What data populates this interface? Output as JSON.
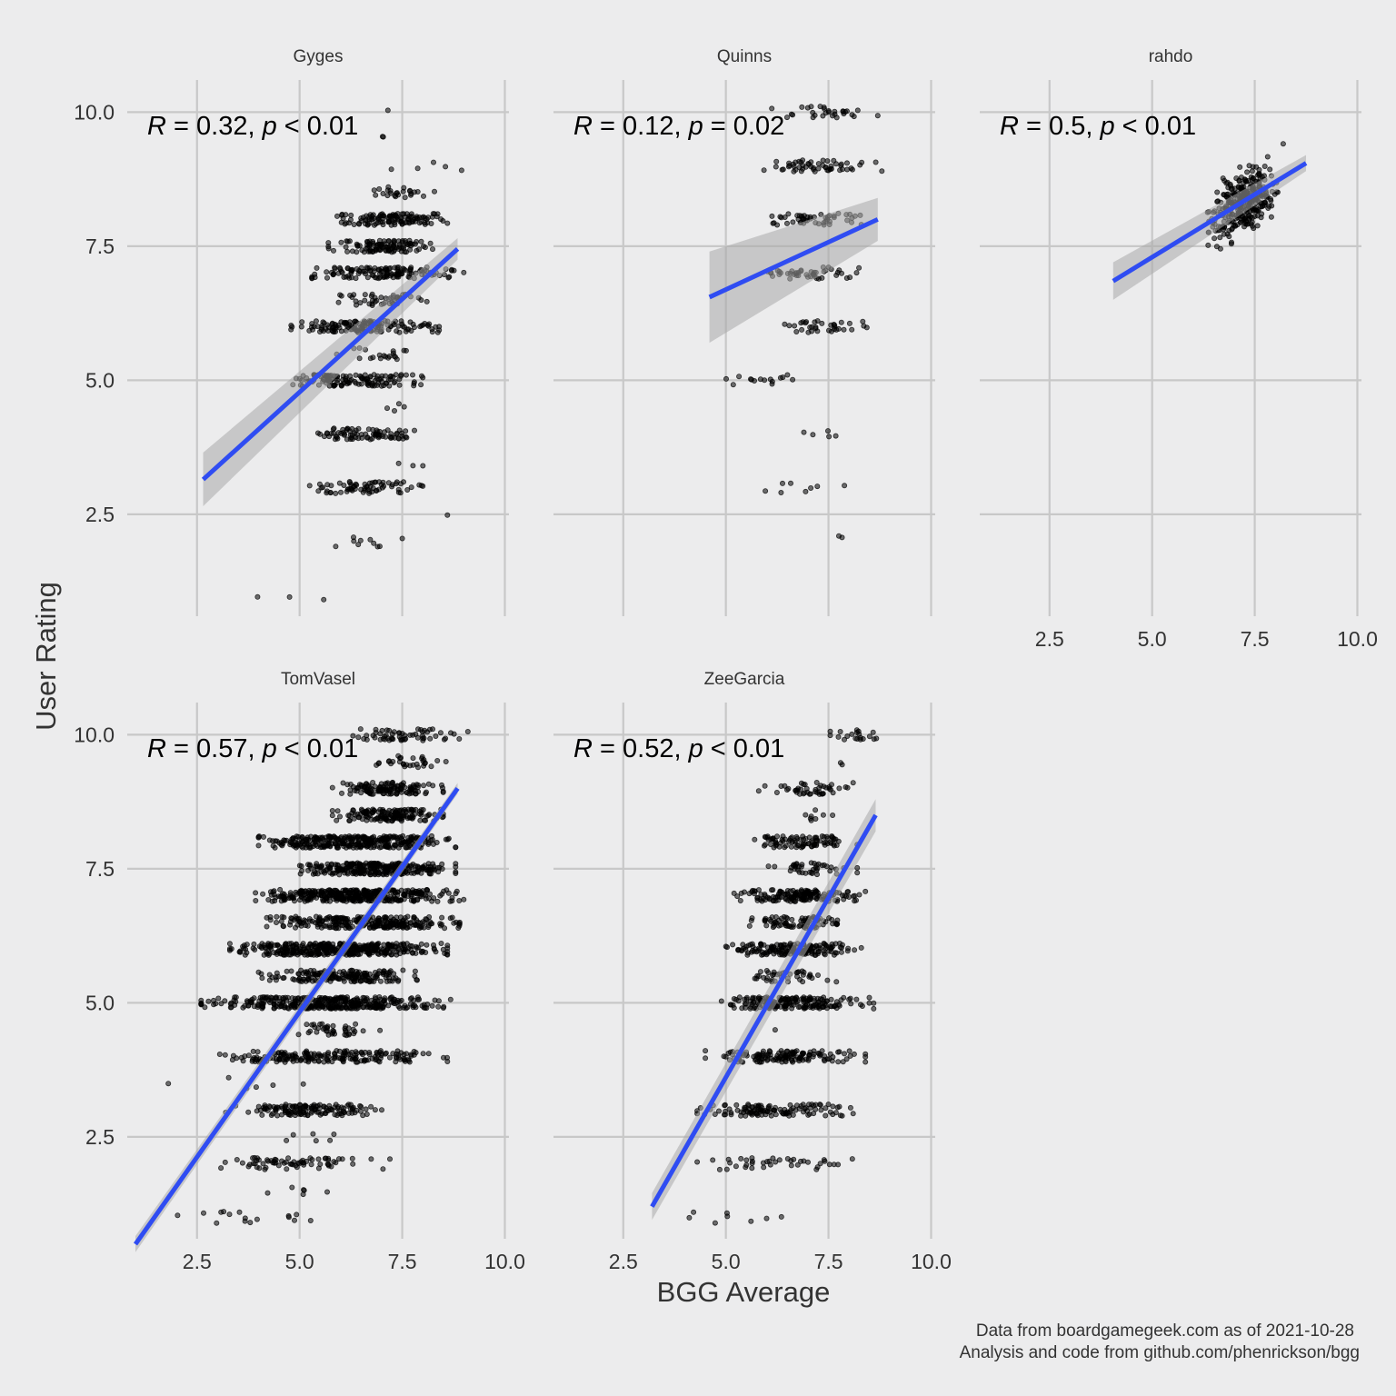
{
  "chart_data": {
    "type": "scatter",
    "xlabel": "BGG Average",
    "ylabel": "User Rating",
    "xlim": [
      0.8,
      10.1
    ],
    "ylim": [
      0.6,
      10.6
    ],
    "x_ticks": [
      "2.5",
      "5.0",
      "7.5",
      "10.0"
    ],
    "y_ticks": [
      "2.5",
      "5.0",
      "7.5",
      "10.0"
    ],
    "grid": true,
    "caption": [
      "Data from boardgamegeek.com as of 2021-10-28",
      "Analysis and code from github.com/phenrickson/bgg"
    ],
    "colors": {
      "background": "#ececed",
      "grid": "#c8c8c8",
      "points": "#000000",
      "fit_line": "#2f4cf2",
      "ribbon": "#a9a9a9"
    },
    "panels": [
      {
        "name": "Gyges",
        "annotation": {
          "R": "0.32",
          "p": "< 0.01"
        },
        "fit": {
          "x": [
            2.65,
            8.85
          ],
          "y": [
            3.15,
            7.45
          ]
        },
        "ci_halfwidth": [
          0.5,
          0.2
        ],
        "levels": [
          {
            "y": 10,
            "xmin": 7.0,
            "xmax": 7.3,
            "n": 1
          },
          {
            "y": 9.5,
            "xmin": 6.9,
            "xmax": 7.1,
            "n": 2
          },
          {
            "y": 9,
            "xmin": 6.5,
            "xmax": 9.1,
            "n": 5
          },
          {
            "y": 8.5,
            "xmin": 6.5,
            "xmax": 8.3,
            "n": 25
          },
          {
            "y": 8,
            "xmin": 5.9,
            "xmax": 8.6,
            "n": 120
          },
          {
            "y": 7.5,
            "xmin": 5.7,
            "xmax": 8.4,
            "n": 110
          },
          {
            "y": 7,
            "xmin": 5.3,
            "xmax": 9.0,
            "n": 130
          },
          {
            "y": 6.5,
            "xmin": 5.9,
            "xmax": 8.1,
            "n": 45
          },
          {
            "y": 6,
            "xmin": 4.7,
            "xmax": 8.4,
            "n": 140
          },
          {
            "y": 5.5,
            "xmin": 5.7,
            "xmax": 7.9,
            "n": 20
          },
          {
            "y": 5,
            "xmin": 4.3,
            "xmax": 8.0,
            "n": 130
          },
          {
            "y": 4.5,
            "xmin": 6.9,
            "xmax": 7.7,
            "n": 4
          },
          {
            "y": 4,
            "xmin": 5.2,
            "xmax": 8.0,
            "n": 80
          },
          {
            "y": 3.5,
            "xmin": 6.5,
            "xmax": 8.5,
            "n": 3
          },
          {
            "y": 3,
            "xmin": 5.1,
            "xmax": 8.0,
            "n": 70
          },
          {
            "y": 2.5,
            "xmin": 8.5,
            "xmax": 8.7,
            "n": 1
          },
          {
            "y": 2,
            "xmin": 5.5,
            "xmax": 7.5,
            "n": 10
          },
          {
            "y": 1,
            "xmin": 2.9,
            "xmax": 6.6,
            "n": 3
          }
        ]
      },
      {
        "name": "Quinns",
        "annotation": {
          "R": "0.12",
          "p": "= 0.02"
        },
        "fit": {
          "x": [
            4.6,
            8.7
          ],
          "y": [
            6.55,
            8.0
          ]
        },
        "ci_halfwidth": [
          0.85,
          0.4
        ],
        "levels": [
          {
            "y": 10,
            "xmin": 6.0,
            "xmax": 8.7,
            "n": 30
          },
          {
            "y": 9,
            "xmin": 5.9,
            "xmax": 8.8,
            "n": 55
          },
          {
            "y": 8,
            "xmin": 6.1,
            "xmax": 8.3,
            "n": 50
          },
          {
            "y": 7,
            "xmin": 5.8,
            "xmax": 8.3,
            "n": 45
          },
          {
            "y": 6,
            "xmin": 6.3,
            "xmax": 8.6,
            "n": 35
          },
          {
            "y": 5,
            "xmin": 4.6,
            "xmax": 7.4,
            "n": 15
          },
          {
            "y": 4,
            "xmin": 6.9,
            "xmax": 7.7,
            "n": 5
          },
          {
            "y": 3,
            "xmin": 5.0,
            "xmax": 8.3,
            "n": 8
          },
          {
            "y": 2,
            "xmin": 7.3,
            "xmax": 8.0,
            "n": 2
          }
        ]
      },
      {
        "name": "rahdo",
        "annotation": {
          "R": "0.5",
          "p": "< 0.01"
        },
        "fit": {
          "x": [
            4.05,
            8.75
          ],
          "y": [
            6.85,
            9.05
          ]
        },
        "ci_halfwidth": [
          0.35,
          0.15
        ],
        "cloud": {
          "x_center": 7.2,
          "x_sd": 0.45,
          "x_range": [
            4.0,
            8.9
          ],
          "y_sd": 0.35,
          "n": 320
        }
      },
      {
        "name": "TomVasel",
        "annotation": {
          "R": "0.57",
          "p": "< 0.01"
        },
        "fit": {
          "x": [
            1.0,
            8.85
          ],
          "y": [
            0.5,
            9.0
          ]
        },
        "ci_halfwidth": [
          0.15,
          0.1
        ],
        "levels": [
          {
            "y": 10,
            "xmin": 6.3,
            "xmax": 9.1,
            "n": 60
          },
          {
            "y": 9.5,
            "xmin": 6.8,
            "xmax": 8.8,
            "n": 30
          },
          {
            "y": 9,
            "xmin": 5.8,
            "xmax": 8.5,
            "n": 130
          },
          {
            "y": 8.5,
            "xmin": 5.8,
            "xmax": 8.5,
            "n": 150
          },
          {
            "y": 8,
            "xmin": 4.0,
            "xmax": 8.8,
            "n": 330
          },
          {
            "y": 7.5,
            "xmin": 5.0,
            "xmax": 8.8,
            "n": 280
          },
          {
            "y": 7,
            "xmin": 3.9,
            "xmax": 9.0,
            "n": 380
          },
          {
            "y": 6.5,
            "xmin": 4.2,
            "xmax": 8.9,
            "n": 260
          },
          {
            "y": 6,
            "xmin": 3.3,
            "xmax": 8.6,
            "n": 380
          },
          {
            "y": 5.5,
            "xmin": 4.0,
            "xmax": 8.1,
            "n": 180
          },
          {
            "y": 5,
            "xmin": 2.6,
            "xmax": 8.7,
            "n": 360
          },
          {
            "y": 4.5,
            "xmin": 4.7,
            "xmax": 7.0,
            "n": 40
          },
          {
            "y": 4,
            "xmin": 3.0,
            "xmax": 8.6,
            "n": 200
          },
          {
            "y": 3.5,
            "xmin": 1.8,
            "xmax": 5.5,
            "n": 6
          },
          {
            "y": 3,
            "xmin": 3.2,
            "xmax": 7.0,
            "n": 140
          },
          {
            "y": 2.5,
            "xmin": 4.4,
            "xmax": 6.0,
            "n": 6
          },
          {
            "y": 2,
            "xmin": 3.0,
            "xmax": 7.2,
            "n": 70
          },
          {
            "y": 1.5,
            "xmin": 3.2,
            "xmax": 6.3,
            "n": 6
          },
          {
            "y": 1,
            "xmin": 0.9,
            "xmax": 6.5,
            "n": 16
          }
        ]
      },
      {
        "name": "ZeeGarcia",
        "annotation": {
          "R": "0.52",
          "p": "< 0.01"
        },
        "fit": {
          "x": [
            3.2,
            8.65
          ],
          "y": [
            1.2,
            8.5
          ]
        },
        "ci_halfwidth": [
          0.25,
          0.3
        ],
        "levels": [
          {
            "y": 10,
            "xmin": 7.3,
            "xmax": 8.9,
            "n": 20
          },
          {
            "y": 9.5,
            "xmin": 7.7,
            "xmax": 7.9,
            "n": 2
          },
          {
            "y": 9,
            "xmin": 5.8,
            "xmax": 8.1,
            "n": 45
          },
          {
            "y": 8.5,
            "xmin": 6.8,
            "xmax": 7.6,
            "n": 8
          },
          {
            "y": 8,
            "xmin": 5.7,
            "xmax": 8.2,
            "n": 90
          },
          {
            "y": 7.5,
            "xmin": 6.0,
            "xmax": 8.2,
            "n": 40
          },
          {
            "y": 7,
            "xmin": 5.2,
            "xmax": 8.4,
            "n": 160
          },
          {
            "y": 6.5,
            "xmin": 5.3,
            "xmax": 8.2,
            "n": 80
          },
          {
            "y": 6,
            "xmin": 5.0,
            "xmax": 8.3,
            "n": 170
          },
          {
            "y": 5.5,
            "xmin": 5.4,
            "xmax": 7.8,
            "n": 40
          },
          {
            "y": 5,
            "xmin": 4.7,
            "xmax": 8.6,
            "n": 180
          },
          {
            "y": 4.5,
            "xmin": 6.0,
            "xmax": 6.4,
            "n": 1
          },
          {
            "y": 4,
            "xmin": 4.5,
            "xmax": 8.4,
            "n": 140
          },
          {
            "y": 3,
            "xmin": 4.3,
            "xmax": 8.1,
            "n": 120
          },
          {
            "y": 2,
            "xmin": 4.3,
            "xmax": 8.1,
            "n": 40
          },
          {
            "y": 1,
            "xmin": 3.2,
            "xmax": 6.6,
            "n": 8
          }
        ]
      }
    ]
  }
}
